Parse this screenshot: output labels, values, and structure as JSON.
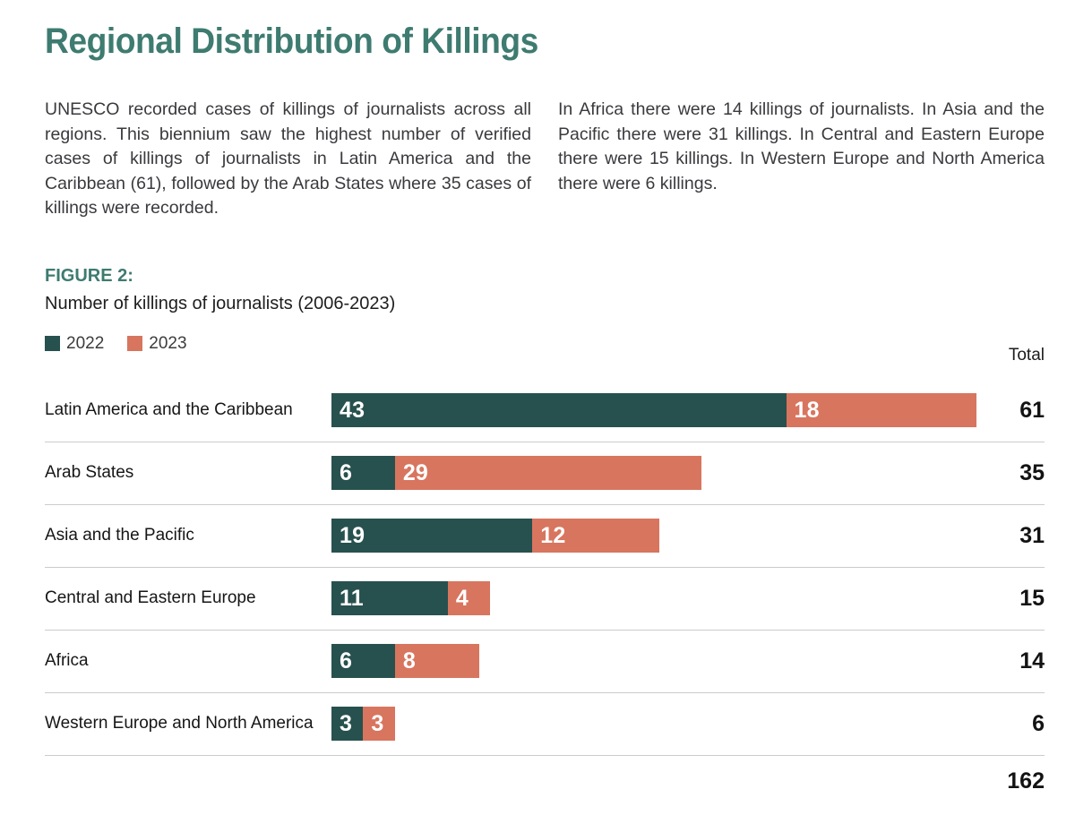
{
  "page": {
    "title": "Regional Distribution of Killings",
    "intro_left": "UNESCO recorded cases of killings of journalists across all regions. This biennium saw the highest number of verified cases of killings of journalists in Latin America and the Caribbean (61), followed by the Arab States where 35 cases of killings were recorded.",
    "intro_right": "In Africa there were 14 killings of journalists. In Asia and the Pacific there were 31 killings. In Central and Eastern Europe there were 15 killings. In Western Europe and North America there were 6 killings."
  },
  "figure": {
    "label": "FIGURE 2:",
    "subtitle": "Number of killings of journalists (2006-2023)",
    "total_column_header": "Total"
  },
  "colors": {
    "accent_teal": "#3e7b70",
    "bar_2022": "#27514e",
    "bar_2023": "#d8755f",
    "divider": "#cbcbcb"
  },
  "chart_data": {
    "type": "bar",
    "orientation": "horizontal",
    "stacked": true,
    "title": "FIGURE 2: Number of killings of journalists (2006-2023)",
    "categories": [
      "Latin America and the Caribbean",
      "Arab States",
      "Asia and the Pacific",
      "Central and Eastern Europe",
      "Africa",
      "Western Europe and North America"
    ],
    "series": [
      {
        "name": "2022",
        "color": "#27514e",
        "values": [
          43,
          6,
          19,
          11,
          6,
          3
        ]
      },
      {
        "name": "2023",
        "color": "#d8755f",
        "values": [
          18,
          29,
          12,
          4,
          8,
          3
        ]
      }
    ],
    "totals": [
      61,
      35,
      31,
      15,
      14,
      6
    ],
    "grand_total": 162,
    "total_column_header": "Total",
    "xlim": [
      0,
      61
    ],
    "legend_position": "top-left",
    "grid": false,
    "value_labels": "inside-left, white"
  }
}
